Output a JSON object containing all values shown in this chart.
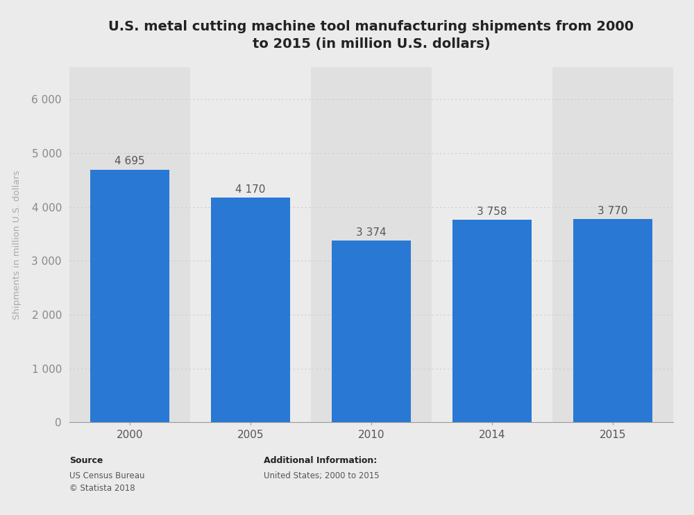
{
  "title": "U.S. metal cutting machine tool manufacturing shipments from 2000\nto 2015 (in million U.S. dollars)",
  "categories": [
    "2000",
    "2005",
    "2010",
    "2014",
    "2015"
  ],
  "values": [
    4695,
    4170,
    3374,
    3758,
    3770
  ],
  "bar_color": "#2878d4",
  "ylabel": "Shipments in million U.S. dollars",
  "ylim": [
    0,
    6600
  ],
  "yticks": [
    0,
    1000,
    2000,
    3000,
    4000,
    5000,
    6000
  ],
  "ytick_labels": [
    "0",
    "1 000",
    "2 000",
    "3 000",
    "4 000",
    "5 000",
    "6 000"
  ],
  "background_color": "#ebebeb",
  "plot_bg_color": "#ebebeb",
  "col_band_light": "#ebebeb",
  "col_band_dark": "#e0e0e0",
  "title_fontsize": 14,
  "label_fontsize": 9.5,
  "tick_fontsize": 11,
  "value_label_fontsize": 11,
  "source_text_bold": "Source",
  "source_text_normal": "US Census Bureau\n© Statista 2018",
  "additional_info_bold": "Additional Information:",
  "additional_info_normal": "United States; 2000 to 2015"
}
